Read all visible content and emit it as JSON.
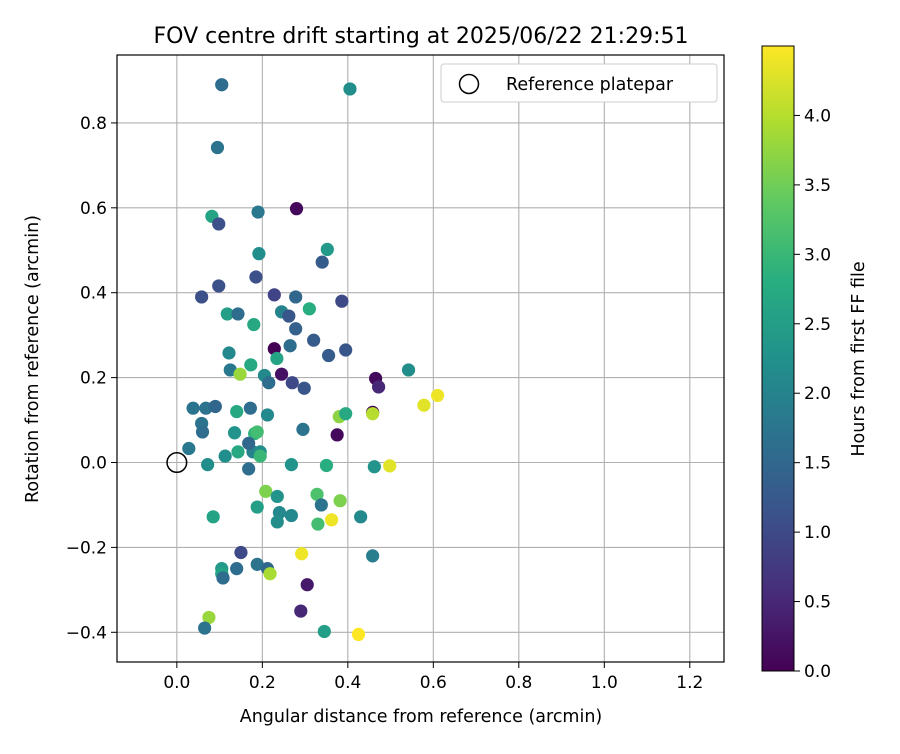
{
  "chart_data": {
    "type": "scatter",
    "title": "FOV centre drift starting at 2025/06/22 21:29:51",
    "xlabel": "Angular distance from reference (arcmin)",
    "ylabel": "Rotation from reference (arcmin)",
    "xlim": [
      -0.14,
      1.28
    ],
    "ylim": [
      -0.47,
      0.96
    ],
    "xticks": [
      0.0,
      0.2,
      0.4,
      0.6,
      0.8,
      1.0,
      1.2
    ],
    "yticks": [
      -0.4,
      -0.2,
      0.0,
      0.2,
      0.4,
      0.6,
      0.8
    ],
    "xtick_labels": [
      "0.0",
      "0.2",
      "0.4",
      "0.6",
      "0.8",
      "1.0",
      "1.2"
    ],
    "ytick_labels": [
      "−0.4",
      "−0.2",
      "0.0",
      "0.2",
      "0.4",
      "0.6",
      "0.8"
    ],
    "grid": true,
    "colormap": "viridis",
    "colorbar": {
      "label": "Hours from first FF file",
      "range": [
        0.0,
        4.5
      ],
      "ticks": [
        0.0,
        0.5,
        1.0,
        1.5,
        2.0,
        2.5,
        3.0,
        3.5,
        4.0
      ],
      "tick_labels": [
        "0.0",
        "0.5",
        "1.0",
        "1.5",
        "2.0",
        "2.5",
        "3.0",
        "3.5",
        "4.0"
      ]
    },
    "legend": {
      "placement": "top-right",
      "entries": [
        {
          "label": "Reference platepar",
          "marker": "open-circle"
        }
      ]
    },
    "reference_point": {
      "x": 0.0,
      "y": 0.0
    },
    "points": [
      {
        "x": 0.105,
        "y": 0.89,
        "c": 1.6
      },
      {
        "x": 0.405,
        "y": 0.88,
        "c": 2.2
      },
      {
        "x": 0.095,
        "y": 0.742,
        "c": 1.7
      },
      {
        "x": 0.28,
        "y": 0.598,
        "c": 0.1
      },
      {
        "x": 0.19,
        "y": 0.59,
        "c": 1.8
      },
      {
        "x": 0.082,
        "y": 0.58,
        "c": 2.6
      },
      {
        "x": 0.098,
        "y": 0.562,
        "c": 1.1
      },
      {
        "x": 0.352,
        "y": 0.502,
        "c": 2.4
      },
      {
        "x": 0.192,
        "y": 0.492,
        "c": 2.2
      },
      {
        "x": 0.34,
        "y": 0.472,
        "c": 1.3
      },
      {
        "x": 0.185,
        "y": 0.437,
        "c": 1.1
      },
      {
        "x": 0.098,
        "y": 0.416,
        "c": 1.1
      },
      {
        "x": 0.058,
        "y": 0.39,
        "c": 1.1
      },
      {
        "x": 0.228,
        "y": 0.395,
        "c": 0.9
      },
      {
        "x": 0.278,
        "y": 0.39,
        "c": 1.5
      },
      {
        "x": 0.386,
        "y": 0.38,
        "c": 1.0
      },
      {
        "x": 0.31,
        "y": 0.362,
        "c": 2.8
      },
      {
        "x": 0.245,
        "y": 0.355,
        "c": 2.0
      },
      {
        "x": 0.262,
        "y": 0.345,
        "c": 1.2
      },
      {
        "x": 0.118,
        "y": 0.35,
        "c": 2.5
      },
      {
        "x": 0.143,
        "y": 0.35,
        "c": 1.6
      },
      {
        "x": 0.18,
        "y": 0.325,
        "c": 2.7
      },
      {
        "x": 0.278,
        "y": 0.315,
        "c": 1.4
      },
      {
        "x": 0.32,
        "y": 0.288,
        "c": 1.3
      },
      {
        "x": 0.228,
        "y": 0.268,
        "c": 0.0
      },
      {
        "x": 0.265,
        "y": 0.275,
        "c": 1.6
      },
      {
        "x": 0.395,
        "y": 0.265,
        "c": 1.2
      },
      {
        "x": 0.122,
        "y": 0.258,
        "c": 2.1
      },
      {
        "x": 0.234,
        "y": 0.245,
        "c": 2.6
      },
      {
        "x": 0.355,
        "y": 0.252,
        "c": 1.3
      },
      {
        "x": 0.173,
        "y": 0.23,
        "c": 2.7
      },
      {
        "x": 0.125,
        "y": 0.218,
        "c": 1.8
      },
      {
        "x": 0.148,
        "y": 0.208,
        "c": 3.8
      },
      {
        "x": 0.245,
        "y": 0.208,
        "c": 0.2
      },
      {
        "x": 0.205,
        "y": 0.205,
        "c": 2.1
      },
      {
        "x": 0.215,
        "y": 0.188,
        "c": 1.6
      },
      {
        "x": 0.27,
        "y": 0.188,
        "c": 1.0
      },
      {
        "x": 0.298,
        "y": 0.175,
        "c": 1.2
      },
      {
        "x": 0.465,
        "y": 0.198,
        "c": 0.1
      },
      {
        "x": 0.472,
        "y": 0.178,
        "c": 0.5
      },
      {
        "x": 0.542,
        "y": 0.218,
        "c": 2.2
      },
      {
        "x": 0.61,
        "y": 0.158,
        "c": 4.4
      },
      {
        "x": 0.578,
        "y": 0.135,
        "c": 4.3
      },
      {
        "x": 0.038,
        "y": 0.128,
        "c": 1.7
      },
      {
        "x": 0.068,
        "y": 0.128,
        "c": 1.7
      },
      {
        "x": 0.09,
        "y": 0.132,
        "c": 1.5
      },
      {
        "x": 0.14,
        "y": 0.12,
        "c": 2.7
      },
      {
        "x": 0.172,
        "y": 0.128,
        "c": 1.6
      },
      {
        "x": 0.212,
        "y": 0.112,
        "c": 2.1
      },
      {
        "x": 0.058,
        "y": 0.092,
        "c": 1.7
      },
      {
        "x": 0.06,
        "y": 0.072,
        "c": 1.6
      },
      {
        "x": 0.135,
        "y": 0.07,
        "c": 2.3
      },
      {
        "x": 0.182,
        "y": 0.068,
        "c": 2.9
      },
      {
        "x": 0.188,
        "y": 0.072,
        "c": 3.1
      },
      {
        "x": 0.295,
        "y": 0.078,
        "c": 1.7
      },
      {
        "x": 0.375,
        "y": 0.065,
        "c": 0.1
      },
      {
        "x": 0.38,
        "y": 0.108,
        "c": 3.7
      },
      {
        "x": 0.395,
        "y": 0.115,
        "c": 2.7
      },
      {
        "x": 0.458,
        "y": 0.118,
        "c": 0.0
      },
      {
        "x": 0.458,
        "y": 0.115,
        "c": 4.0
      },
      {
        "x": 0.028,
        "y": 0.033,
        "c": 1.8
      },
      {
        "x": 0.113,
        "y": 0.015,
        "c": 2.2
      },
      {
        "x": 0.143,
        "y": 0.025,
        "c": 2.7
      },
      {
        "x": 0.178,
        "y": 0.025,
        "c": 2.0
      },
      {
        "x": 0.195,
        "y": 0.025,
        "c": 2.2
      },
      {
        "x": 0.195,
        "y": 0.015,
        "c": 3.0
      },
      {
        "x": 0.168,
        "y": 0.045,
        "c": 1.5
      },
      {
        "x": 0.168,
        "y": -0.015,
        "c": 1.6
      },
      {
        "x": 0.072,
        "y": -0.005,
        "c": 2.2
      },
      {
        "x": 0.268,
        "y": -0.005,
        "c": 2.3
      },
      {
        "x": 0.35,
        "y": -0.007,
        "c": 2.8
      },
      {
        "x": 0.462,
        "y": -0.01,
        "c": 2.3
      },
      {
        "x": 0.498,
        "y": -0.008,
        "c": 4.3
      },
      {
        "x": 0.208,
        "y": -0.068,
        "c": 3.6
      },
      {
        "x": 0.235,
        "y": -0.08,
        "c": 2.3
      },
      {
        "x": 0.328,
        "y": -0.075,
        "c": 3.2
      },
      {
        "x": 0.382,
        "y": -0.09,
        "c": 3.6
      },
      {
        "x": 0.338,
        "y": -0.1,
        "c": 1.7
      },
      {
        "x": 0.188,
        "y": -0.105,
        "c": 2.5
      },
      {
        "x": 0.24,
        "y": -0.118,
        "c": 2.1
      },
      {
        "x": 0.268,
        "y": -0.125,
        "c": 2.1
      },
      {
        "x": 0.085,
        "y": -0.128,
        "c": 2.6
      },
      {
        "x": 0.43,
        "y": -0.128,
        "c": 2.1
      },
      {
        "x": 0.362,
        "y": -0.135,
        "c": 4.4
      },
      {
        "x": 0.235,
        "y": -0.14,
        "c": 2.2
      },
      {
        "x": 0.33,
        "y": -0.145,
        "c": 3.1
      },
      {
        "x": 0.458,
        "y": -0.22,
        "c": 1.9
      },
      {
        "x": 0.15,
        "y": -0.212,
        "c": 1.0
      },
      {
        "x": 0.292,
        "y": -0.215,
        "c": 4.4
      },
      {
        "x": 0.188,
        "y": -0.24,
        "c": 1.7
      },
      {
        "x": 0.212,
        "y": -0.25,
        "c": 1.5
      },
      {
        "x": 0.14,
        "y": -0.25,
        "c": 1.6
      },
      {
        "x": 0.105,
        "y": -0.25,
        "c": 2.4
      },
      {
        "x": 0.105,
        "y": -0.262,
        "c": 2.6
      },
      {
        "x": 0.218,
        "y": -0.262,
        "c": 3.9
      },
      {
        "x": 0.108,
        "y": -0.272,
        "c": 1.6
      },
      {
        "x": 0.305,
        "y": -0.288,
        "c": 0.3
      },
      {
        "x": 0.29,
        "y": -0.35,
        "c": 0.5
      },
      {
        "x": 0.075,
        "y": -0.365,
        "c": 3.8
      },
      {
        "x": 0.065,
        "y": -0.39,
        "c": 1.7
      },
      {
        "x": 0.345,
        "y": -0.398,
        "c": 2.5
      },
      {
        "x": 0.425,
        "y": -0.405,
        "c": 4.5
      }
    ]
  }
}
